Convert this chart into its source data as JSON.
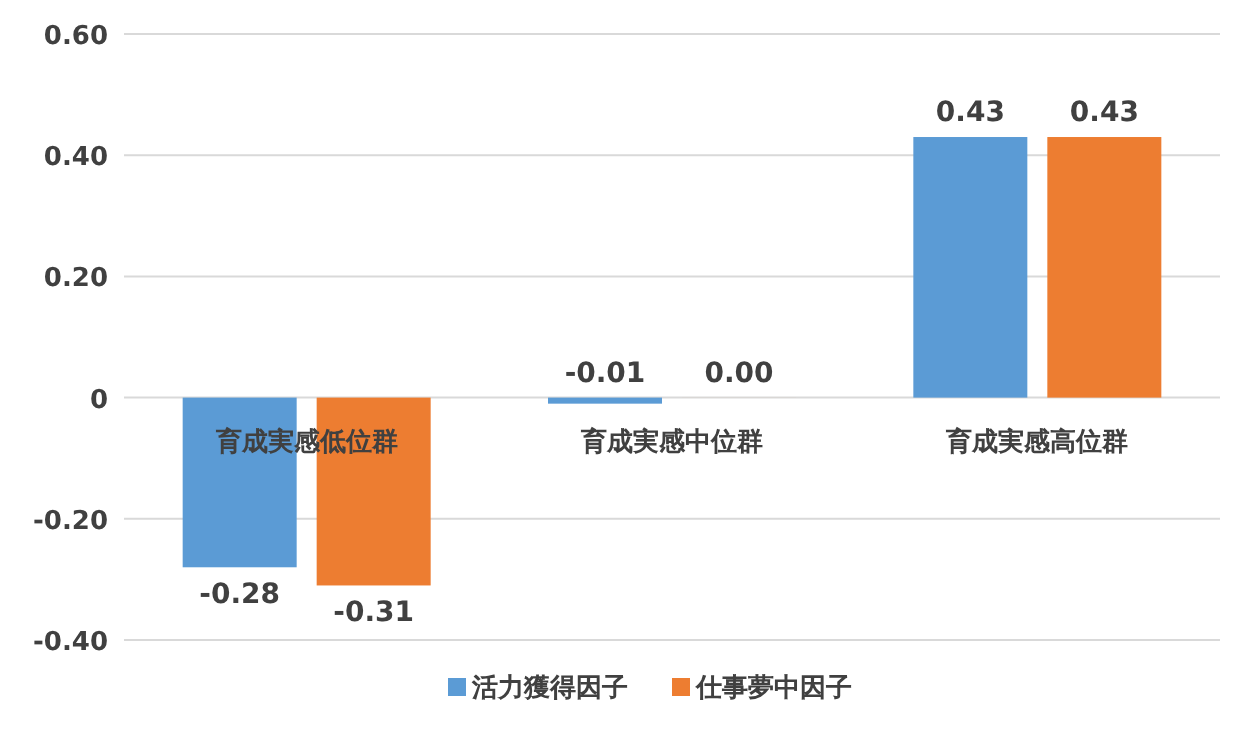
{
  "chart_data": {
    "type": "bar",
    "categories": [
      "育成実感低位群",
      "育成実感中位群",
      "育成実感高位群"
    ],
    "series": [
      {
        "name": "活力獲得因子",
        "color": "#5b9bd5",
        "values": [
          -0.28,
          -0.01,
          0.43
        ],
        "value_labels": [
          "-0.28",
          "-0.01",
          "0.43"
        ]
      },
      {
        "name": "仕事夢中因子",
        "color": "#ed7d31",
        "values": [
          -0.31,
          0.0,
          0.43
        ],
        "value_labels": [
          "-0.31",
          "0.00",
          "0.43"
        ]
      }
    ],
    "ylim": [
      -0.4,
      0.6
    ],
    "yticks": [
      {
        "value": -0.4,
        "label": "-0.40"
      },
      {
        "value": -0.2,
        "label": "-0.20"
      },
      0,
      {
        "value": 0.2,
        "label": "0.20"
      },
      {
        "value": 0.4,
        "label": "0.40"
      },
      {
        "value": 0.6,
        "label": "0.60"
      }
    ],
    "grid": "y",
    "legend": "bottom"
  }
}
